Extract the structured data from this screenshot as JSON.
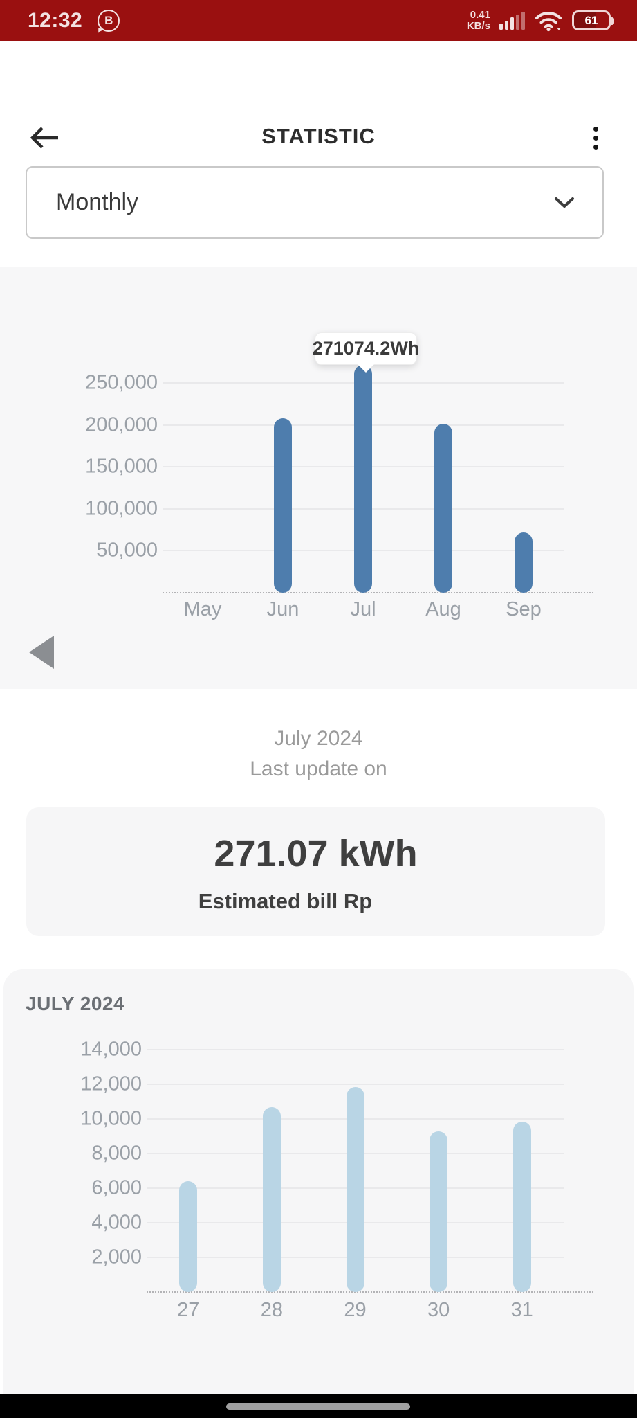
{
  "status_bar": {
    "time": "12:32",
    "badge_letter": "B",
    "net_speed_value": "0.41",
    "net_speed_unit": "KB/s",
    "battery_level": "61"
  },
  "header": {
    "title": "STATISTIC"
  },
  "period_selector": {
    "value": "Monthly"
  },
  "summary": {
    "month_label": "July 2024",
    "last_update_label": "Last update on",
    "energy_value": "271.07 kWh",
    "estimated_bill_label": "Estimated bill Rp"
  },
  "chart_data": [
    {
      "type": "bar",
      "title": "",
      "categories": [
        "May",
        "Jun",
        "Jul",
        "Aug",
        "Sep"
      ],
      "values": [
        null,
        208000,
        271074.2,
        201000,
        72000
      ],
      "unit": "Wh",
      "yticks": [
        50000,
        100000,
        150000,
        200000,
        250000
      ],
      "ytick_labels": [
        "50,000",
        "100,000",
        "150,000",
        "200,000",
        "250,000"
      ],
      "ylim": [
        0,
        280000
      ],
      "grid": true,
      "legend": "none",
      "bar_color": "#4e7dad",
      "tooltip_label": "271074.2Wh",
      "tooltip_category": "Jul"
    },
    {
      "type": "bar",
      "title": "JULY 2024",
      "categories": [
        "27",
        "28",
        "29",
        "30",
        "31"
      ],
      "values": [
        6400,
        10700,
        11850,
        9300,
        9850
      ],
      "unit": "Wh",
      "yticks": [
        2000,
        4000,
        6000,
        8000,
        10000,
        12000,
        14000
      ],
      "ytick_labels": [
        "2,000",
        "4,000",
        "6,000",
        "8,000",
        "10,000",
        "12,000",
        "14,000"
      ],
      "ylim": [
        0,
        14000
      ],
      "grid": true,
      "legend": "none",
      "bar_color": "#b9d5e5"
    }
  ],
  "colors": {
    "status_bar_bg": "#9a1010",
    "bar_blue": "#4e7dad",
    "bar_light_blue": "#b9d5e5",
    "section_bg": "#f7f7f8",
    "axis_label": "#9aa0a7",
    "dark_text": "#3f3f3f",
    "muted_text": "#9a9a9a"
  }
}
